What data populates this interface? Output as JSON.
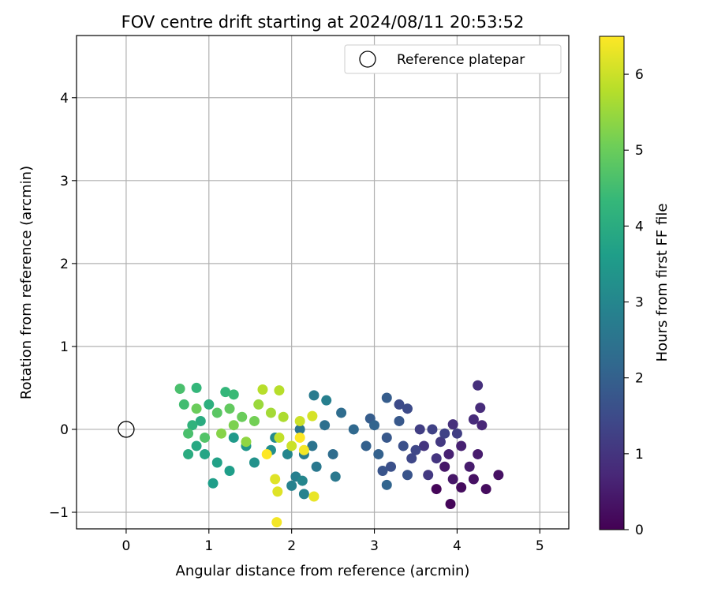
{
  "chart_data": {
    "type": "scatter",
    "title": "FOV centre drift starting at 2024/08/11 20:53:52",
    "xlabel": "Angular distance from reference (arcmin)",
    "ylabel": "Rotation from reference (arcmin)",
    "xlim": [
      -0.6,
      5.35
    ],
    "ylim": [
      -1.2,
      4.75
    ],
    "x_ticks": [
      0,
      1,
      2,
      3,
      4,
      5
    ],
    "x_tick_labels": [
      "0",
      "1",
      "2",
      "3",
      "4",
      "5"
    ],
    "y_ticks": [
      -1,
      0,
      1,
      2,
      3,
      4
    ],
    "y_tick_labels": [
      "−1",
      "0",
      "1",
      "2",
      "3",
      "4"
    ],
    "grid": true,
    "legend": {
      "position": "top-right",
      "label": "Reference platepar",
      "marker": "open-circle"
    },
    "reference_point": {
      "x": 0,
      "y": 0
    },
    "colorbar": {
      "label": "Hours from first FF file",
      "range": [
        0,
        6.5
      ],
      "ticks": [
        0,
        1,
        2,
        3,
        4,
        5,
        6
      ],
      "tick_labels": [
        "0",
        "1",
        "2",
        "3",
        "4",
        "5",
        "6"
      ],
      "colormap": "viridis"
    },
    "colormap_stops": [
      "#440154",
      "#482878",
      "#3e4989",
      "#31688e",
      "#26828e",
      "#1f9e89",
      "#35b779",
      "#6ece58",
      "#b5de2b",
      "#fde725"
    ],
    "series": [
      {
        "points": [
          [
            3.92,
            -0.9,
            0.1
          ],
          [
            3.75,
            -0.72,
            0.1
          ],
          [
            4.05,
            -0.7,
            0.2
          ],
          [
            4.35,
            -0.72,
            0.2
          ],
          [
            4.5,
            -0.55,
            0.3
          ],
          [
            4.2,
            -0.6,
            0.3
          ],
          [
            3.95,
            -0.6,
            0.4
          ],
          [
            3.85,
            -0.45,
            0.4
          ],
          [
            4.15,
            -0.45,
            0.5
          ],
          [
            4.25,
            -0.3,
            0.5
          ],
          [
            3.9,
            -0.3,
            0.6
          ],
          [
            4.05,
            -0.2,
            0.6
          ],
          [
            4.3,
            0.05,
            0.7
          ],
          [
            4.2,
            0.12,
            0.8
          ],
          [
            4.28,
            0.26,
            0.8
          ],
          [
            4.25,
            0.53,
            0.9
          ],
          [
            3.95,
            0.06,
            0.9
          ],
          [
            3.6,
            -0.2,
            1.0
          ],
          [
            3.75,
            -0.35,
            1.0
          ],
          [
            3.65,
            -0.55,
            1.1
          ],
          [
            3.8,
            -0.15,
            1.1
          ],
          [
            4.0,
            -0.05,
            1.2
          ],
          [
            3.55,
            0.0,
            1.2
          ],
          [
            3.7,
            0.0,
            1.3
          ],
          [
            3.85,
            -0.05,
            1.3
          ],
          [
            3.45,
            -0.35,
            1.4
          ],
          [
            3.5,
            -0.25,
            1.4
          ],
          [
            3.4,
            0.25,
            1.5
          ],
          [
            3.3,
            0.3,
            1.5
          ],
          [
            3.35,
            -0.2,
            1.6
          ],
          [
            3.2,
            -0.45,
            1.6
          ],
          [
            3.4,
            -0.55,
            1.7
          ],
          [
            3.1,
            -0.5,
            1.7
          ],
          [
            3.15,
            -0.1,
            1.8
          ],
          [
            3.3,
            0.1,
            1.8
          ],
          [
            3.15,
            0.38,
            1.9
          ],
          [
            2.95,
            0.13,
            1.9
          ],
          [
            2.9,
            -0.2,
            2.0
          ],
          [
            3.05,
            -0.3,
            2.0
          ],
          [
            3.0,
            0.05,
            2.1
          ],
          [
            3.15,
            -0.67,
            2.1
          ],
          [
            2.75,
            0.0,
            2.2
          ],
          [
            2.6,
            0.2,
            2.3
          ],
          [
            2.5,
            -0.3,
            2.3
          ],
          [
            2.4,
            0.05,
            2.4
          ],
          [
            2.25,
            -0.2,
            2.5
          ],
          [
            2.1,
            0.0,
            2.5
          ],
          [
            2.53,
            -0.57,
            2.6
          ],
          [
            2.3,
            -0.45,
            2.6
          ],
          [
            2.15,
            -0.3,
            2.7
          ],
          [
            2.27,
            0.41,
            2.7
          ],
          [
            2.42,
            0.35,
            2.8
          ],
          [
            2.05,
            -0.57,
            2.8
          ],
          [
            2.0,
            -0.68,
            2.9
          ],
          [
            2.15,
            -0.78,
            2.9
          ],
          [
            2.13,
            -0.62,
            3.0
          ],
          [
            1.95,
            -0.3,
            3.0
          ],
          [
            1.8,
            -0.1,
            3.1
          ],
          [
            1.75,
            -0.25,
            3.2
          ],
          [
            1.55,
            -0.4,
            3.3
          ],
          [
            1.45,
            -0.2,
            3.4
          ],
          [
            1.3,
            -0.1,
            3.5
          ],
          [
            1.05,
            -0.65,
            3.6
          ],
          [
            1.25,
            -0.5,
            3.6
          ],
          [
            1.1,
            -0.4,
            3.7
          ],
          [
            0.95,
            -0.3,
            3.8
          ],
          [
            0.85,
            -0.2,
            3.9
          ],
          [
            0.75,
            -0.3,
            4.0
          ],
          [
            0.9,
            0.1,
            4.0
          ],
          [
            1.0,
            0.3,
            4.1
          ],
          [
            0.8,
            0.05,
            4.2
          ],
          [
            0.85,
            0.5,
            4.3
          ],
          [
            1.2,
            0.45,
            4.3
          ],
          [
            1.3,
            0.42,
            4.4
          ],
          [
            0.7,
            0.3,
            4.5
          ],
          [
            0.65,
            0.49,
            4.6
          ],
          [
            0.75,
            -0.05,
            4.6
          ],
          [
            0.95,
            -0.1,
            4.7
          ],
          [
            1.1,
            0.2,
            4.8
          ],
          [
            1.25,
            0.25,
            4.9
          ],
          [
            0.85,
            0.25,
            5.0
          ],
          [
            1.4,
            0.15,
            5.0
          ],
          [
            1.55,
            0.1,
            5.1
          ],
          [
            1.3,
            0.05,
            5.2
          ],
          [
            1.15,
            -0.05,
            5.3
          ],
          [
            1.45,
            -0.15,
            5.4
          ],
          [
            1.6,
            0.3,
            5.5
          ],
          [
            1.75,
            0.2,
            5.6
          ],
          [
            1.9,
            0.15,
            5.7
          ],
          [
            1.65,
            0.48,
            5.8
          ],
          [
            1.85,
            0.47,
            5.8
          ],
          [
            1.85,
            -0.1,
            5.9
          ],
          [
            2.0,
            -0.2,
            6.0
          ],
          [
            2.1,
            0.1,
            6.0
          ],
          [
            2.25,
            0.16,
            6.1
          ],
          [
            1.8,
            -0.6,
            6.2
          ],
          [
            1.83,
            -0.75,
            6.2
          ],
          [
            2.27,
            -0.81,
            6.3
          ],
          [
            1.82,
            -1.12,
            6.4
          ],
          [
            2.15,
            -0.25,
            6.4
          ],
          [
            1.7,
            -0.3,
            6.5
          ],
          [
            2.1,
            -0.1,
            6.5
          ]
        ]
      }
    ]
  }
}
